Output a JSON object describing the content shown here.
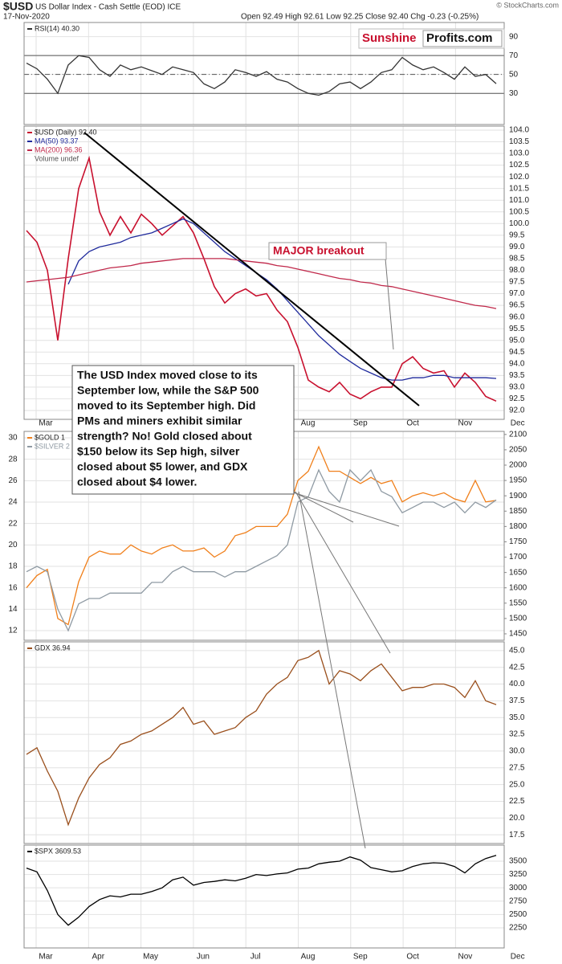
{
  "header": {
    "title": "$USD",
    "subtitle": "US Dollar Index - Cash Settle (EOD) ICE",
    "date": "17-Nov-2020",
    "quote": "Open 92.49 High 92.61 Low 92.25 Close 92.40 Chg -0.23 (-0.25%)",
    "credit": "© StockCharts.com"
  },
  "logo": {
    "part1": "Sunshine",
    "part2": "Profits.com"
  },
  "months": [
    "Mar",
    "Apr",
    "May",
    "Jun",
    "Jul",
    "Aug",
    "Sep",
    "Oct",
    "Nov",
    "Dec"
  ],
  "callout": "MAJOR breakout",
  "annotation": {
    "lines": [
      "The USD Index moved close to its",
      "September low, while the S&P 500",
      "moved to its September high. Did",
      "PMs and miners exhibit similar",
      "strength? No! Gold closed about",
      "$150 below its Sep high, silver",
      "closed about $5 lower, and GDX",
      "closed about $4 lower."
    ]
  },
  "chart_data": [
    {
      "type": "line",
      "ylim": [
        -3,
        105
      ],
      "yticks": [
        30,
        50,
        70,
        90
      ],
      "levels": [
        70,
        50,
        30
      ],
      "grid": true,
      "series": [
        {
          "name": "RSI(14) 40.30",
          "color": "#333333",
          "values": [
            62,
            56,
            45,
            30,
            60,
            70,
            68,
            55,
            48,
            60,
            55,
            58,
            54,
            50,
            58,
            55,
            52,
            40,
            35,
            42,
            55,
            52,
            48,
            53,
            45,
            42,
            35,
            30,
            28,
            32,
            40,
            42,
            35,
            42,
            52,
            55,
            68,
            60,
            55,
            58,
            52,
            45,
            58,
            48,
            50,
            40.3
          ]
        }
      ]
    },
    {
      "type": "line",
      "ylim": [
        91.62,
        104.17
      ],
      "grid": true,
      "yticks": [
        {
          "value": 104,
          "label": "104.0"
        },
        103.5,
        {
          "value": 103,
          "label": "103.0"
        },
        102.5,
        {
          "value": 102,
          "label": "102.0"
        },
        101.5,
        {
          "value": 101,
          "label": "101.0"
        },
        100.5,
        {
          "value": 100,
          "label": "100.0"
        },
        99.5,
        {
          "value": 99,
          "label": "99.0"
        },
        98.5,
        {
          "value": 98,
          "label": "98.0"
        },
        97.5,
        {
          "value": 97,
          "label": "97.0"
        },
        96.5,
        {
          "value": 96,
          "label": "96.0"
        },
        95.5,
        {
          "value": 95,
          "label": "95.0"
        },
        94.5,
        {
          "value": 94,
          "label": "94.0"
        },
        93.5,
        {
          "value": 93,
          "label": "93.0"
        },
        92.5,
        {
          "value": 92,
          "label": "92.0"
        }
      ],
      "legend_extra": "Volume undef",
      "series": [
        {
          "name": "$USD (Daily) 92.40",
          "color": "#c8102e",
          "values": [
            99.7,
            99.2,
            98.0,
            95.0,
            98.5,
            101.5,
            102.8,
            100.5,
            99.5,
            100.3,
            99.6,
            100.4,
            100.0,
            99.5,
            99.9,
            100.3,
            99.6,
            98.5,
            97.3,
            96.6,
            97.0,
            97.2,
            96.9,
            97.0,
            96.3,
            95.8,
            94.7,
            93.3,
            93.0,
            92.8,
            93.2,
            92.7,
            92.5,
            92.8,
            93.0,
            93.0,
            94.0,
            94.3,
            93.8,
            93.6,
            93.7,
            93.0,
            93.6,
            93.2,
            92.6,
            92.4
          ]
        },
        {
          "name": "MA(50) 93.37",
          "color": "#1f2a9c",
          "values": [
            null,
            null,
            null,
            null,
            97.4,
            98.4,
            98.8,
            99.0,
            99.1,
            99.2,
            99.4,
            99.5,
            99.6,
            99.8,
            100.0,
            100.2,
            100.0,
            99.6,
            99.2,
            98.8,
            98.5,
            98.2,
            97.9,
            97.6,
            97.2,
            96.7,
            96.2,
            95.7,
            95.2,
            94.8,
            94.4,
            94.1,
            93.8,
            93.6,
            93.4,
            93.3,
            93.3,
            93.4,
            93.4,
            93.5,
            93.5,
            93.4,
            93.4,
            93.4,
            93.4,
            93.37
          ]
        },
        {
          "name": "MA(200) 96.36",
          "color": "#c0284a",
          "values": [
            97.5,
            97.55,
            97.6,
            97.65,
            97.7,
            97.8,
            97.9,
            98.0,
            98.1,
            98.15,
            98.2,
            98.3,
            98.35,
            98.4,
            98.45,
            98.5,
            98.5,
            98.5,
            98.5,
            98.5,
            98.45,
            98.4,
            98.35,
            98.3,
            98.2,
            98.15,
            98.05,
            97.95,
            97.85,
            97.75,
            97.65,
            97.6,
            97.5,
            97.45,
            97.35,
            97.3,
            97.2,
            97.1,
            97.0,
            96.9,
            96.8,
            96.7,
            96.6,
            96.5,
            96.45,
            96.36
          ]
        }
      ]
    },
    {
      "type": "line",
      "ylim": [
        11.1,
        30.6
      ],
      "yticks": [
        12,
        14,
        16,
        18,
        20,
        22,
        24,
        26,
        28,
        30
      ],
      "y2lim": [
        1429,
        2110
      ],
      "y2ticks": [
        2100,
        2050,
        2000,
        1950,
        1900,
        1850,
        1800,
        1750,
        1700,
        1650,
        1600,
        1550,
        1500,
        1450
      ],
      "grid": true,
      "series": [
        {
          "name": "$GOLD 1",
          "color": "#f07f1a",
          "axis": "y2",
          "values": [
            1600,
            1640,
            1660,
            1500,
            1480,
            1620,
            1700,
            1720,
            1710,
            1710,
            1740,
            1720,
            1710,
            1730,
            1740,
            1720,
            1720,
            1730,
            1700,
            1720,
            1770,
            1780,
            1800,
            1800,
            1800,
            1840,
            1950,
            1980,
            2060,
            1980,
            1980,
            1960,
            1940,
            1960,
            1940,
            1950,
            1880,
            1900,
            1910,
            1900,
            1910,
            1890,
            1880,
            1950,
            1880,
            1885
          ]
        },
        {
          "name": "$SILVER 2",
          "color": "#8f9aa3",
          "values": [
            17.5,
            18,
            17.5,
            14,
            12,
            14.5,
            15,
            15,
            15.5,
            15.5,
            15.5,
            15.5,
            16.5,
            16.5,
            17.5,
            18,
            17.5,
            17.5,
            17.5,
            17,
            17.5,
            17.5,
            18,
            18.5,
            19,
            20,
            24,
            24.5,
            27,
            25,
            24,
            27,
            26,
            27,
            25,
            24.5,
            23,
            23.5,
            24,
            24,
            23.5,
            24,
            23,
            24,
            23.5,
            24.2
          ]
        }
      ]
    },
    {
      "type": "line",
      "ylim": [
        16.2,
        46.3
      ],
      "grid": true,
      "yticks": [
        {
          "value": 45,
          "label": "45.0"
        },
        42.5,
        {
          "value": 40,
          "label": "40.0"
        },
        37.5,
        {
          "value": 35,
          "label": "35.0"
        },
        32.5,
        {
          "value": 30,
          "label": "30.0"
        },
        27.5,
        {
          "value": 25,
          "label": "25.0"
        },
        22.5,
        {
          "value": 20,
          "label": "20.0"
        },
        17.5
      ],
      "series": [
        {
          "name": "GDX 36.94",
          "color": "#9a4f1c",
          "values": [
            29.5,
            30.5,
            27,
            24,
            19,
            23,
            26,
            28,
            29,
            31,
            31.5,
            32.5,
            33,
            34,
            35,
            36.5,
            34,
            34.5,
            32.5,
            33,
            33.5,
            35,
            36,
            38.5,
            40,
            41,
            43.5,
            44,
            45,
            40,
            42,
            41.5,
            40.5,
            42,
            43,
            41,
            39,
            39.5,
            39.5,
            40,
            40,
            39.5,
            38,
            40.5,
            37.5,
            36.94
          ]
        }
      ]
    },
    {
      "type": "line",
      "ylim": [
        1873,
        3801
      ],
      "yticks": [
        3500,
        3250,
        3000,
        2750,
        2500,
        2250
      ],
      "grid": true,
      "series": [
        {
          "name": "$SPX 3609.53",
          "color": "#000000",
          "values": [
            3370,
            3300,
            2950,
            2500,
            2300,
            2450,
            2650,
            2780,
            2850,
            2830,
            2880,
            2880,
            2930,
            3000,
            3150,
            3200,
            3050,
            3100,
            3120,
            3150,
            3130,
            3180,
            3250,
            3230,
            3260,
            3280,
            3350,
            3370,
            3450,
            3480,
            3500,
            3580,
            3520,
            3380,
            3340,
            3300,
            3320,
            3400,
            3450,
            3470,
            3460,
            3400,
            3280,
            3450,
            3550,
            3609.53
          ]
        }
      ]
    }
  ]
}
